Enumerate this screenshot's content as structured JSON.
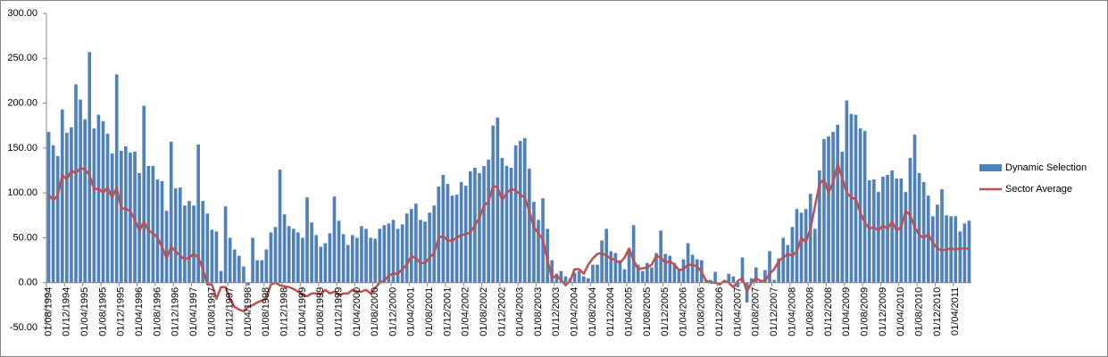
{
  "chart_data": {
    "type": "bar",
    "categories": [
      "01/08/1994",
      null,
      null,
      null,
      "01/12/1994",
      null,
      null,
      null,
      "01/04/1995",
      null,
      null,
      null,
      "01/08/1995",
      null,
      null,
      null,
      "01/12/1995",
      null,
      null,
      null,
      "01/04/1996",
      null,
      null,
      null,
      "01/08/1996",
      null,
      null,
      null,
      "01/12/1996",
      null,
      null,
      null,
      "01/04/1997",
      null,
      null,
      null,
      "01/08/1997",
      null,
      null,
      null,
      "01/12/1997",
      null,
      null,
      null,
      "01/04/1998",
      null,
      null,
      null,
      "01/08/1998",
      null,
      null,
      null,
      "01/12/1998",
      null,
      null,
      null,
      "01/04/1999",
      null,
      null,
      null,
      "01/08/1999",
      null,
      null,
      null,
      "01/12/1999",
      null,
      null,
      null,
      "01/04/2000",
      null,
      null,
      null,
      "01/08/2000",
      null,
      null,
      null,
      "01/12/2000",
      null,
      null,
      null,
      "01/04/2001",
      null,
      null,
      null,
      "01/08/2001",
      null,
      null,
      null,
      "01/12/2001",
      null,
      null,
      null,
      "01/04/2002",
      null,
      null,
      null,
      "01/08/2002",
      null,
      null,
      null,
      "01/12/2002",
      null,
      null,
      null,
      "01/04/2003",
      null,
      null,
      null,
      "01/08/2003",
      null,
      null,
      null,
      "01/12/2003",
      null,
      null,
      null,
      "01/04/2004",
      null,
      null,
      null,
      "01/08/2004",
      null,
      null,
      null,
      "01/12/2004",
      null,
      null,
      null,
      "01/04/2005",
      null,
      null,
      null,
      "01/08/2005",
      null,
      null,
      null,
      "01/12/2005",
      null,
      null,
      null,
      "01/04/2006",
      null,
      null,
      null,
      "01/08/2006",
      null,
      null,
      null,
      "01/12/2006",
      null,
      null,
      null,
      "01/04/2007",
      null,
      null,
      null,
      "01/08/2007",
      null,
      null,
      null,
      "01/12/2007",
      null,
      null,
      null,
      "01/04/2008",
      null,
      null,
      null,
      "01/08/2008",
      null,
      null,
      null,
      "01/12/2008",
      null,
      null,
      null,
      "01/04/2009",
      null,
      null,
      null,
      "01/08/2009",
      null,
      null,
      null,
      "01/12/2009",
      null,
      null,
      null,
      "01/04/2010",
      null,
      null,
      null,
      "01/08/2010",
      null,
      null,
      null,
      "01/12/2010",
      null,
      null,
      null,
      "01/04/2011",
      null,
      null,
      null
    ],
    "series": [
      {
        "name": "Dynamic Selection",
        "type": "bar",
        "color": "#4f81bd",
        "values": [
          168,
          153,
          141,
          193,
          167,
          173,
          221,
          204,
          182,
          257,
          172,
          187,
          180,
          166,
          144,
          232,
          147,
          152,
          145,
          146,
          122,
          197,
          130,
          130,
          115,
          113,
          80,
          157,
          105,
          106,
          86,
          91,
          86,
          154,
          91,
          77,
          59,
          57,
          13,
          85,
          50,
          37,
          30,
          18,
          -3,
          50,
          25,
          25,
          37,
          56,
          62,
          126,
          76,
          63,
          60,
          56,
          50,
          95,
          67,
          53,
          40,
          44,
          55,
          96,
          69,
          54,
          42,
          53,
          50,
          63,
          60,
          50,
          49,
          60,
          64,
          66,
          70,
          60,
          65,
          77,
          82,
          88,
          70,
          68,
          78,
          86,
          107,
          120,
          110,
          97,
          98,
          112,
          108,
          124,
          128,
          122,
          130,
          137,
          175,
          184,
          139,
          130,
          128,
          153,
          158,
          161,
          127,
          90,
          70,
          94,
          60,
          25,
          10,
          13,
          7,
          5,
          11,
          13,
          7,
          5,
          20,
          20,
          47,
          60,
          35,
          33,
          25,
          15,
          38,
          64,
          20,
          13,
          22,
          17,
          33,
          58,
          32,
          30,
          22,
          14,
          26,
          44,
          31,
          26,
          25,
          3,
          3,
          12,
          -2,
          3,
          10,
          7,
          -5,
          28,
          -22,
          5,
          17,
          3,
          14,
          35,
          3,
          27,
          50,
          42,
          62,
          82,
          78,
          82,
          99,
          60,
          125,
          160,
          163,
          168,
          176,
          146,
          203,
          188,
          187,
          172,
          169,
          114,
          115,
          101,
          118,
          120,
          125,
          116,
          116,
          101,
          139,
          165,
          122,
          112,
          97,
          74,
          87,
          104,
          75,
          74,
          74,
          57,
          66,
          69
        ]
      },
      {
        "name": "Sector Average",
        "type": "line",
        "color": "#c0504d",
        "values": [
          98,
          92,
          97,
          120,
          115,
          125,
          122,
          128,
          126,
          120,
          104,
          105,
          100,
          106,
          95,
          106,
          83,
          82,
          80,
          70,
          58,
          68,
          58,
          55,
          50,
          40,
          27,
          40,
          35,
          30,
          26,
          28,
          32,
          28,
          15,
          -2,
          -2,
          -18,
          -5,
          -5,
          -18,
          -27,
          -30,
          -32,
          -27,
          -25,
          -22,
          -20,
          -18,
          -2,
          0,
          -3,
          -4,
          -5,
          -7,
          -10,
          -14,
          -15,
          -12,
          -12,
          -13,
          -8,
          -12,
          -10,
          -14,
          -12,
          -12,
          -8,
          -10,
          -10,
          -8,
          -12,
          -6,
          0,
          2,
          8,
          10,
          10,
          15,
          20,
          30,
          27,
          22,
          22,
          28,
          33,
          50,
          52,
          47,
          47,
          50,
          53,
          54,
          56,
          64,
          72,
          86,
          90,
          108,
          106,
          92,
          100,
          104,
          103,
          98,
          95,
          80,
          62,
          55,
          48,
          25,
          5,
          8,
          3,
          -3,
          2,
          15,
          15,
          10,
          20,
          27,
          32,
          33,
          30,
          27,
          25,
          22,
          28,
          38,
          25,
          15,
          16,
          17,
          20,
          30,
          28,
          22,
          24,
          20,
          14,
          15,
          20,
          20,
          18,
          12,
          2,
          0,
          0,
          -2,
          2,
          0,
          -5,
          2,
          5,
          -10,
          0,
          5,
          2,
          2,
          10,
          15,
          24,
          28,
          32,
          30,
          35,
          50,
          45,
          60,
          85,
          110,
          115,
          100,
          112,
          132,
          117,
          100,
          95,
          93,
          78,
          67,
          60,
          62,
          58,
          64,
          60,
          68,
          58,
          62,
          80,
          75,
          62,
          53,
          50,
          54,
          45,
          38,
          36,
          37,
          38,
          37,
          38,
          38,
          38
        ]
      }
    ],
    "ylim": [
      -50,
      300
    ],
    "yticks": [
      {
        "value": -50,
        "label": "-50.00"
      },
      {
        "value": 0,
        "label": "0.00"
      },
      {
        "value": 50,
        "label": "50.00"
      },
      {
        "value": 100,
        "label": "100.00"
      },
      {
        "value": 150,
        "label": "150.00"
      },
      {
        "value": 200,
        "label": "200.00"
      },
      {
        "value": 250,
        "label": "250.00"
      },
      {
        "value": 300,
        "label": "300.00"
      }
    ],
    "grid": false,
    "legend": "right"
  }
}
